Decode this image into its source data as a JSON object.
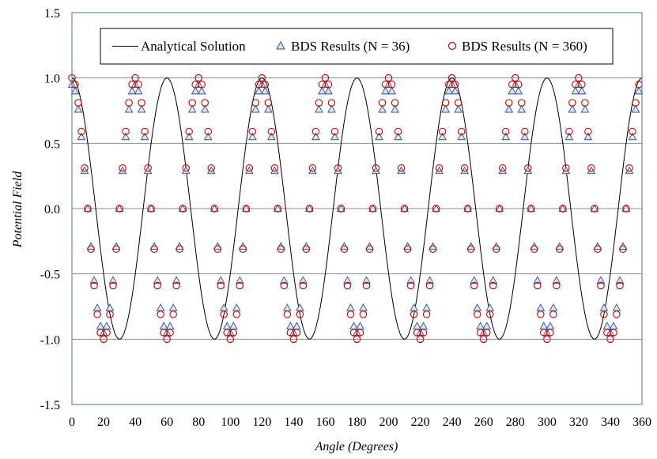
{
  "chart_data": {
    "type": "line",
    "title": "",
    "xlabel_parts": [
      "Angle (",
      "Degrees",
      ")"
    ],
    "ylabel": "Potential Field",
    "xlim": [
      0,
      360
    ],
    "ylim": [
      -1.5,
      1.5
    ],
    "x_ticks": [
      "0",
      "20",
      "40",
      "60",
      "80",
      "100",
      "120",
      "140",
      "160",
      "180",
      "200",
      "220",
      "240",
      "260",
      "280",
      "300",
      "320",
      "340",
      "360"
    ],
    "y_ticks": [
      "1.5",
      "1.0",
      "0.5",
      "0.0",
      "-0.5",
      "-1.0",
      "-1.5"
    ],
    "grid": "horizontal",
    "legend_placement": "top",
    "series": [
      {
        "name": "Analytical Solution",
        "style": "line",
        "color": "#000000",
        "function": "cos(6x)",
        "x_step": 1
      },
      {
        "name": "BDS Results (N = 36)",
        "style": "triangle",
        "color": "#2b4f8e",
        "x": [
          0,
          2,
          4,
          6,
          8,
          10,
          12,
          14,
          16,
          18,
          20,
          22,
          24,
          26,
          28,
          30,
          32,
          34,
          36,
          38,
          40,
          42,
          44,
          46,
          48,
          50,
          52,
          54,
          56,
          58,
          60,
          62,
          64,
          66,
          68,
          70,
          72,
          74,
          76,
          78,
          80,
          82,
          84,
          86,
          88,
          90,
          92,
          94,
          96,
          98,
          100,
          102,
          104,
          106,
          108,
          110,
          112,
          114,
          116,
          118,
          120,
          122,
          124,
          126,
          128,
          130,
          132,
          134,
          136,
          138,
          140,
          142,
          144,
          146,
          148,
          150,
          152,
          154,
          156,
          158,
          160,
          162,
          164,
          166,
          168,
          170,
          172,
          174,
          176,
          178,
          180,
          182,
          184,
          186,
          188,
          190,
          192,
          194,
          196,
          198,
          200,
          202,
          204,
          206,
          208,
          210,
          212,
          214,
          216,
          218,
          220,
          222,
          224,
          226,
          228,
          230,
          232,
          234,
          236,
          238,
          240,
          242,
          244,
          246,
          248,
          250,
          252,
          254,
          256,
          258,
          260,
          262,
          264,
          266,
          268,
          270,
          272,
          274,
          276,
          278,
          280,
          282,
          284,
          286,
          288,
          290,
          292,
          294,
          296,
          298,
          300,
          302,
          304,
          306,
          308,
          310,
          312,
          314,
          316,
          318,
          320,
          322,
          324,
          326,
          328,
          330,
          332,
          334,
          336,
          338,
          340,
          342,
          344,
          346,
          348,
          350,
          352,
          354,
          356,
          358
        ],
        "y": [
          0.95,
          0.9,
          0.76,
          0.55,
          0.29,
          0.0,
          -0.29,
          -0.55,
          -0.76,
          -0.9,
          -0.95,
          -0.9,
          -0.76,
          -0.55,
          -0.29,
          0.0,
          0.29,
          0.55,
          0.76,
          0.9,
          0.95,
          0.9,
          0.76,
          0.55,
          0.29,
          0.0,
          -0.29,
          -0.55,
          -0.76,
          -0.9,
          -0.95,
          -0.9,
          -0.76,
          -0.55,
          -0.29,
          0.0,
          0.29,
          0.55,
          0.76,
          0.9,
          0.95,
          0.9,
          0.76,
          0.55,
          0.29,
          0.0,
          -0.29,
          -0.55,
          -0.76,
          -0.9,
          -0.95,
          -0.9,
          -0.76,
          -0.55,
          -0.29,
          0.0,
          0.29,
          0.55,
          0.76,
          0.9,
          0.95,
          0.9,
          0.76,
          0.55,
          0.29,
          0.0,
          -0.29,
          -0.55,
          -0.76,
          -0.9,
          -0.95,
          -0.9,
          -0.76,
          -0.55,
          -0.29,
          0.0,
          0.29,
          0.55,
          0.76,
          0.9,
          0.95,
          0.9,
          0.76,
          0.55,
          0.29,
          0.0,
          -0.29,
          -0.55,
          -0.76,
          -0.9,
          -0.95,
          -0.9,
          -0.76,
          -0.55,
          -0.29,
          0.0,
          0.29,
          0.55,
          0.76,
          0.9,
          0.95,
          0.9,
          0.76,
          0.55,
          0.29,
          0.0,
          -0.29,
          -0.55,
          -0.76,
          -0.9,
          -0.95,
          -0.9,
          -0.76,
          -0.55,
          -0.29,
          0.0,
          0.29,
          0.55,
          0.76,
          0.9,
          0.95,
          0.9,
          0.76,
          0.55,
          0.29,
          0.0,
          -0.29,
          -0.55,
          -0.76,
          -0.9,
          -0.95,
          -0.9,
          -0.76,
          -0.55,
          -0.29,
          0.0,
          0.29,
          0.55,
          0.76,
          0.9,
          0.95,
          0.9,
          0.76,
          0.55,
          0.29,
          0.0,
          -0.29,
          -0.55,
          -0.76,
          -0.9,
          -0.95,
          -0.9,
          -0.76,
          -0.55,
          -0.29,
          0.0,
          0.29,
          0.55,
          0.76,
          0.9,
          0.95,
          0.9,
          0.76,
          0.55,
          0.29,
          0.0,
          -0.29,
          -0.55,
          -0.76,
          -0.9,
          -0.95,
          -0.9,
          -0.76,
          -0.55,
          -0.29,
          0.0,
          0.29,
          0.55,
          0.76,
          0.9
        ]
      },
      {
        "name": "BDS Results (N = 360)",
        "style": "circle",
        "color": "#cc0000",
        "x": [
          0,
          2,
          4,
          6,
          8,
          10,
          12,
          14,
          16,
          18,
          20,
          22,
          24,
          26,
          28,
          30,
          32,
          34,
          36,
          38,
          40,
          42,
          44,
          46,
          48,
          50,
          52,
          54,
          56,
          58,
          60,
          62,
          64,
          66,
          68,
          70,
          72,
          74,
          76,
          78,
          80,
          82,
          84,
          86,
          88,
          90,
          92,
          94,
          96,
          98,
          100,
          102,
          104,
          106,
          108,
          110,
          112,
          114,
          116,
          118,
          120,
          122,
          124,
          126,
          128,
          130,
          132,
          134,
          136,
          138,
          140,
          142,
          144,
          146,
          148,
          150,
          152,
          154,
          156,
          158,
          160,
          162,
          164,
          166,
          168,
          170,
          172,
          174,
          176,
          178,
          180,
          182,
          184,
          186,
          188,
          190,
          192,
          194,
          196,
          198,
          200,
          202,
          204,
          206,
          208,
          210,
          212,
          214,
          216,
          218,
          220,
          222,
          224,
          226,
          228,
          230,
          232,
          234,
          236,
          238,
          240,
          242,
          244,
          246,
          248,
          250,
          252,
          254,
          256,
          258,
          260,
          262,
          264,
          266,
          268,
          270,
          272,
          274,
          276,
          278,
          280,
          282,
          284,
          286,
          288,
          290,
          292,
          294,
          296,
          298,
          300,
          302,
          304,
          306,
          308,
          310,
          312,
          314,
          316,
          318,
          320,
          322,
          324,
          326,
          328,
          330,
          332,
          334,
          336,
          338,
          340,
          342,
          344,
          346,
          348,
          350,
          352,
          354,
          356,
          358
        ],
        "y": [
          1.0,
          0.95,
          0.81,
          0.59,
          0.31,
          0.0,
          -0.31,
          -0.59,
          -0.81,
          -0.95,
          -1.0,
          -0.95,
          -0.81,
          -0.59,
          -0.31,
          0.0,
          0.31,
          0.59,
          0.81,
          0.95,
          1.0,
          0.95,
          0.81,
          0.59,
          0.31,
          0.0,
          -0.31,
          -0.59,
          -0.81,
          -0.95,
          -1.0,
          -0.95,
          -0.81,
          -0.59,
          -0.31,
          0.0,
          0.31,
          0.59,
          0.81,
          0.95,
          1.0,
          0.95,
          0.81,
          0.59,
          0.31,
          0.0,
          -0.31,
          -0.59,
          -0.81,
          -0.95,
          -1.0,
          -0.95,
          -0.81,
          -0.59,
          -0.31,
          0.0,
          0.31,
          0.59,
          0.81,
          0.95,
          1.0,
          0.95,
          0.81,
          0.59,
          0.31,
          0.0,
          -0.31,
          -0.59,
          -0.81,
          -0.95,
          -1.0,
          -0.95,
          -0.81,
          -0.59,
          -0.31,
          0.0,
          0.31,
          0.59,
          0.81,
          0.95,
          1.0,
          0.95,
          0.81,
          0.59,
          0.31,
          0.0,
          -0.31,
          -0.59,
          -0.81,
          -0.95,
          -1.0,
          -0.95,
          -0.81,
          -0.59,
          -0.31,
          0.0,
          0.31,
          0.59,
          0.81,
          0.95,
          1.0,
          0.95,
          0.81,
          0.59,
          0.31,
          0.0,
          -0.31,
          -0.59,
          -0.81,
          -0.95,
          -1.0,
          -0.95,
          -0.81,
          -0.59,
          -0.31,
          0.0,
          0.31,
          0.59,
          0.81,
          0.95,
          1.0,
          0.95,
          0.81,
          0.59,
          0.31,
          0.0,
          -0.31,
          -0.59,
          -0.81,
          -0.95,
          -1.0,
          -0.95,
          -0.81,
          -0.59,
          -0.31,
          0.0,
          0.31,
          0.59,
          0.81,
          0.95,
          1.0,
          0.95,
          0.81,
          0.59,
          0.31,
          0.0,
          -0.31,
          -0.59,
          -0.81,
          -0.95,
          -1.0,
          -0.95,
          -0.81,
          -0.59,
          -0.31,
          0.0,
          0.31,
          0.59,
          0.81,
          0.95,
          1.0,
          0.95,
          0.81,
          0.59,
          0.31,
          0.0,
          -0.31,
          -0.59,
          -0.81,
          -0.95,
          -1.0,
          -0.95,
          -0.81,
          -0.59,
          -0.31,
          0.0,
          0.31,
          0.59,
          0.81,
          0.95
        ]
      }
    ]
  }
}
